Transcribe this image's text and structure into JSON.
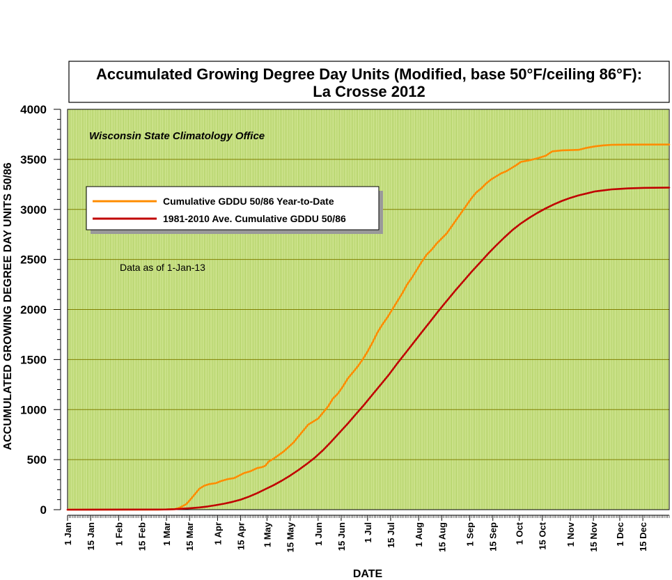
{
  "chart_data": {
    "type": "line",
    "title_line1": "Accumulated Growing Degree Day Units (Modified, base 50°F/ceiling 86°F):",
    "title_line2": "La Crosse 2012",
    "source_label": "Wisconsin State Climatology Office",
    "note": "Data as of 1-Jan-13",
    "xlabel": "DATE",
    "ylabel": "ACCUMULATED GROWING DEGREE DAY UNITS 50/86",
    "ylim": [
      0,
      4000
    ],
    "yticks": [
      0,
      500,
      1000,
      1500,
      2000,
      2500,
      3000,
      3500,
      4000
    ],
    "ytick_labels": [
      "0",
      "500",
      "1000",
      "1500",
      "2000",
      "2500",
      "3000",
      "3500",
      "4000"
    ],
    "xlim": [
      0,
      365
    ],
    "xticks": [
      0,
      14,
      31,
      45,
      60,
      74,
      91,
      105,
      121,
      135,
      152,
      166,
      182,
      196,
      213,
      227,
      244,
      258,
      274,
      288,
      305,
      319,
      335,
      349
    ],
    "xtick_labels": [
      "1 Jan",
      "15 Jan",
      "1 Feb",
      "15 Feb",
      "1 Mar",
      "15 Mar",
      "1 Apr",
      "15 Apr",
      "1 May",
      "15 May",
      "1 Jun",
      "15 Jun",
      "1 Jul",
      "15 Jul",
      "1 Aug",
      "15 Aug",
      "1 Sep",
      "15 Sep",
      "1 Oct",
      "15 Oct",
      "1 Nov",
      "15 Nov",
      "1 Dec",
      "15 Dec"
    ],
    "grid": true,
    "plot_background": "#d7ea9c",
    "grid_vertical_color": "#9fc44a",
    "grid_horizontal_color": "#808000",
    "legend": [
      {
        "label": "Cumulative GDDU 50/86 Year-to-Date",
        "color": "#ff8c00"
      },
      {
        "label": "1981-2010 Ave. Cumulative GDDU 50/86",
        "color": "#c00000"
      }
    ],
    "series": [
      {
        "name": "Cumulative GDDU 50/86 Year-to-Date",
        "color": "#ff8c00",
        "points": [
          [
            0,
            0
          ],
          [
            55,
            0
          ],
          [
            65,
            5
          ],
          [
            68,
            20
          ],
          [
            72,
            55
          ],
          [
            75,
            110
          ],
          [
            78,
            170
          ],
          [
            80,
            210
          ],
          [
            83,
            240
          ],
          [
            86,
            255
          ],
          [
            90,
            265
          ],
          [
            93,
            285
          ],
          [
            97,
            305
          ],
          [
            101,
            315
          ],
          [
            104,
            340
          ],
          [
            107,
            365
          ],
          [
            111,
            385
          ],
          [
            115,
            415
          ],
          [
            118,
            425
          ],
          [
            120,
            440
          ],
          [
            122,
            480
          ],
          [
            125,
            510
          ],
          [
            128,
            545
          ],
          [
            131,
            580
          ],
          [
            134,
            625
          ],
          [
            137,
            670
          ],
          [
            140,
            730
          ],
          [
            143,
            790
          ],
          [
            146,
            850
          ],
          [
            149,
            880
          ],
          [
            152,
            910
          ],
          [
            155,
            970
          ],
          [
            158,
            1030
          ],
          [
            161,
            1110
          ],
          [
            164,
            1160
          ],
          [
            167,
            1230
          ],
          [
            170,
            1310
          ],
          [
            173,
            1370
          ],
          [
            176,
            1430
          ],
          [
            179,
            1500
          ],
          [
            182,
            1580
          ],
          [
            185,
            1670
          ],
          [
            188,
            1770
          ],
          [
            191,
            1850
          ],
          [
            194,
            1920
          ],
          [
            197,
            2000
          ],
          [
            200,
            2080
          ],
          [
            203,
            2160
          ],
          [
            206,
            2250
          ],
          [
            209,
            2320
          ],
          [
            212,
            2400
          ],
          [
            215,
            2480
          ],
          [
            218,
            2550
          ],
          [
            221,
            2600
          ],
          [
            224,
            2660
          ],
          [
            227,
            2710
          ],
          [
            230,
            2760
          ],
          [
            233,
            2830
          ],
          [
            236,
            2900
          ],
          [
            239,
            2970
          ],
          [
            242,
            3040
          ],
          [
            245,
            3110
          ],
          [
            248,
            3170
          ],
          [
            251,
            3210
          ],
          [
            254,
            3260
          ],
          [
            257,
            3300
          ],
          [
            260,
            3330
          ],
          [
            263,
            3360
          ],
          [
            266,
            3380
          ],
          [
            269,
            3410
          ],
          [
            272,
            3440
          ],
          [
            275,
            3475
          ],
          [
            280,
            3490
          ],
          [
            285,
            3510
          ],
          [
            290,
            3535
          ],
          [
            294,
            3580
          ],
          [
            300,
            3590
          ],
          [
            310,
            3595
          ],
          [
            315,
            3615
          ],
          [
            320,
            3630
          ],
          [
            325,
            3640
          ],
          [
            330,
            3645
          ],
          [
            340,
            3647
          ],
          [
            365,
            3648
          ]
        ]
      },
      {
        "name": "1981-2010 Ave. Cumulative GDDU 50/86",
        "color": "#c00000",
        "points": [
          [
            0,
            0
          ],
          [
            60,
            2
          ],
          [
            65,
            5
          ],
          [
            70,
            10
          ],
          [
            75,
            15
          ],
          [
            80,
            22
          ],
          [
            85,
            32
          ],
          [
            90,
            45
          ],
          [
            95,
            60
          ],
          [
            100,
            78
          ],
          [
            105,
            100
          ],
          [
            110,
            130
          ],
          [
            115,
            165
          ],
          [
            120,
            205
          ],
          [
            125,
            245
          ],
          [
            130,
            290
          ],
          [
            135,
            340
          ],
          [
            140,
            395
          ],
          [
            145,
            455
          ],
          [
            150,
            520
          ],
          [
            155,
            595
          ],
          [
            160,
            680
          ],
          [
            165,
            770
          ],
          [
            170,
            860
          ],
          [
            175,
            955
          ],
          [
            180,
            1050
          ],
          [
            185,
            1150
          ],
          [
            190,
            1250
          ],
          [
            195,
            1350
          ],
          [
            200,
            1460
          ],
          [
            205,
            1565
          ],
          [
            210,
            1670
          ],
          [
            215,
            1775
          ],
          [
            220,
            1880
          ],
          [
            225,
            1985
          ],
          [
            230,
            2085
          ],
          [
            235,
            2185
          ],
          [
            240,
            2280
          ],
          [
            245,
            2375
          ],
          [
            250,
            2465
          ],
          [
            255,
            2555
          ],
          [
            260,
            2640
          ],
          [
            265,
            2720
          ],
          [
            270,
            2795
          ],
          [
            275,
            2860
          ],
          [
            280,
            2915
          ],
          [
            285,
            2965
          ],
          [
            290,
            3010
          ],
          [
            295,
            3050
          ],
          [
            300,
            3085
          ],
          [
            305,
            3115
          ],
          [
            310,
            3140
          ],
          [
            315,
            3160
          ],
          [
            320,
            3180
          ],
          [
            325,
            3190
          ],
          [
            330,
            3200
          ],
          [
            335,
            3205
          ],
          [
            340,
            3210
          ],
          [
            350,
            3215
          ],
          [
            365,
            3218
          ]
        ]
      }
    ]
  }
}
